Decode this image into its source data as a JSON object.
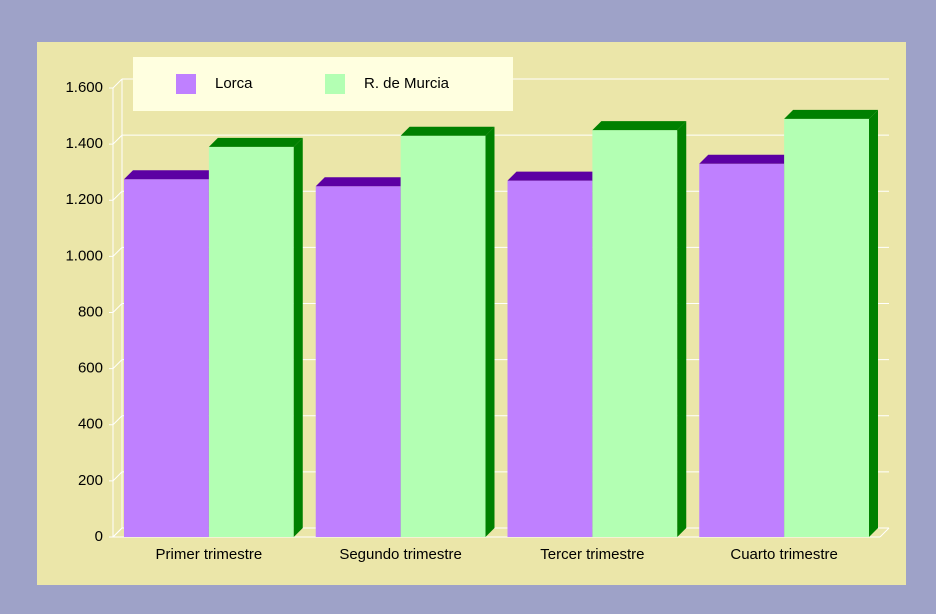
{
  "chart_data": {
    "type": "bar3d",
    "categories": [
      "Primer trimestre",
      "Segundo trimestre",
      "Tercer trimestre",
      "Cuarto trimestre"
    ],
    "series": [
      {
        "name": "Lorca",
        "color": "#bf80ff",
        "shade_color": "#5c00a3",
        "values": [
          1275,
          1250,
          1270,
          1330
        ]
      },
      {
        "name": "R. de Murcia",
        "color": "#b3ffb3",
        "shade_color": "#008000",
        "values": [
          1390,
          1430,
          1450,
          1490
        ]
      }
    ],
    "ylim": [
      0,
      1600
    ],
    "yticks": [
      0,
      200,
      400,
      600,
      800,
      {
        "value": 1000,
        "label": "1.000"
      },
      {
        "value": 1200,
        "label": "1.200"
      },
      {
        "value": 1400,
        "label": "1.400"
      },
      {
        "value": 1600,
        "label": "1.600"
      }
    ],
    "grid": true,
    "legend": "top"
  }
}
